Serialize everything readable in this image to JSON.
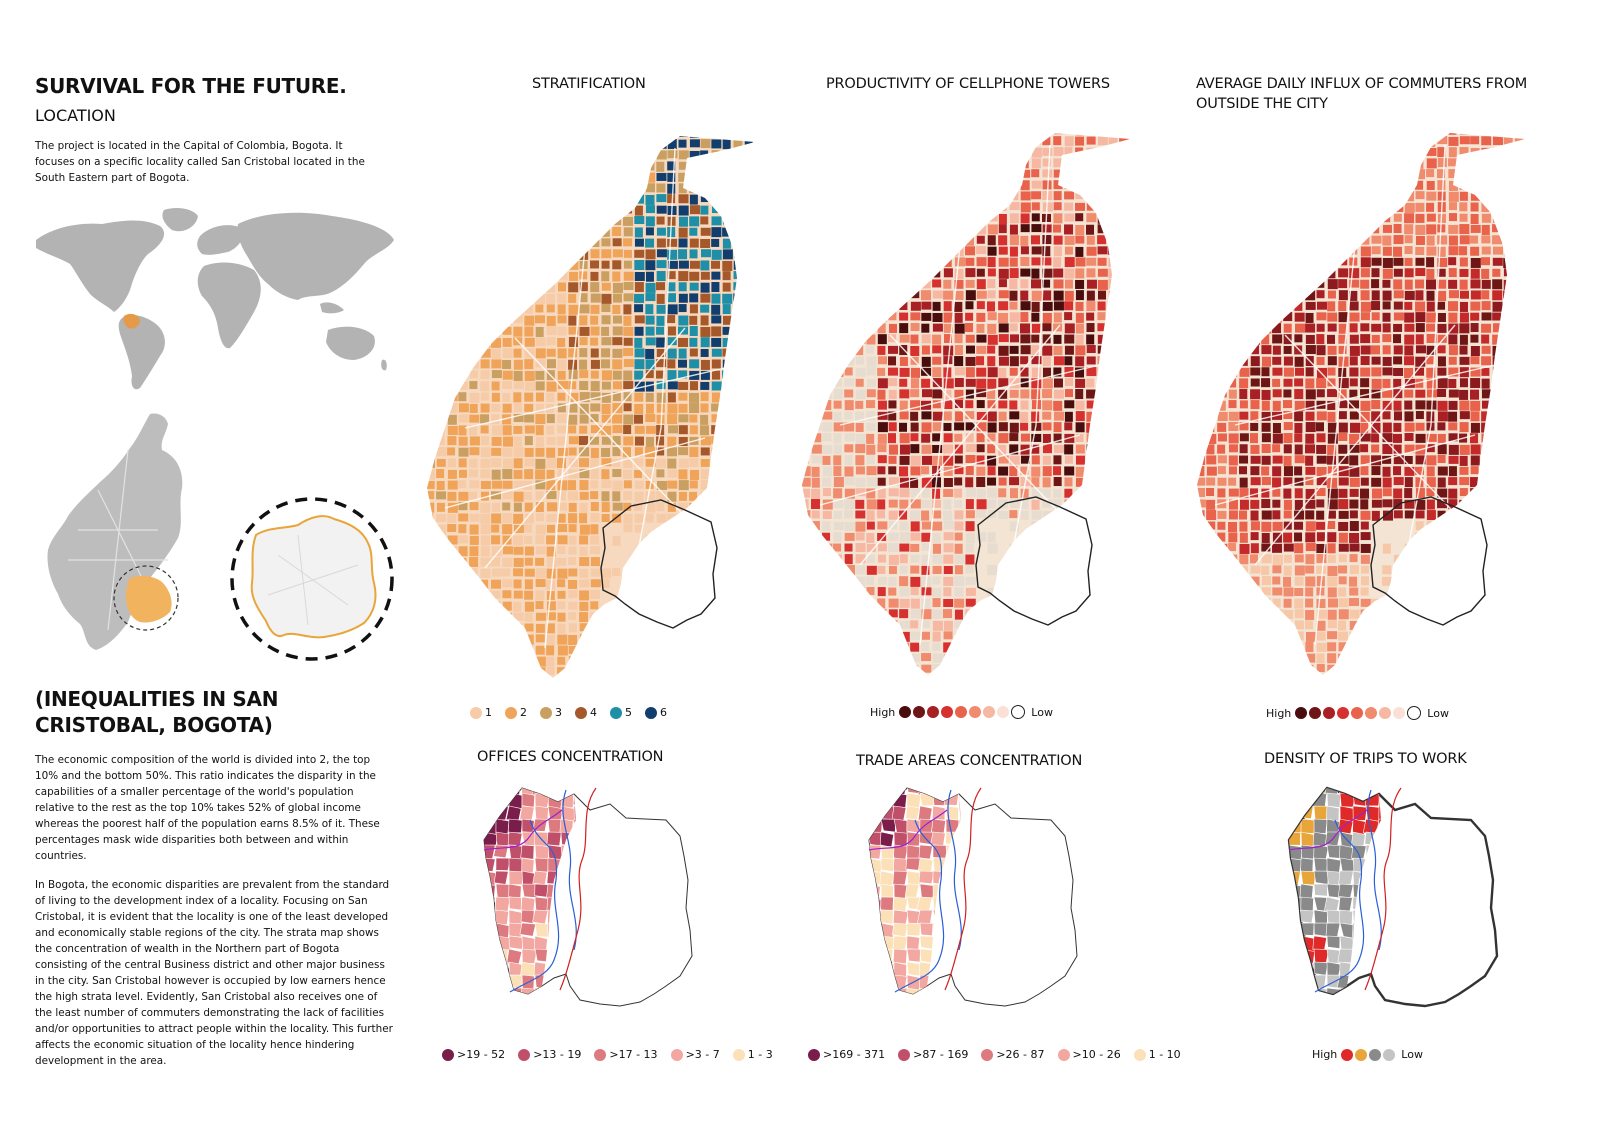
{
  "header": {
    "title": "SURVIVAL FOR THE FUTURE.",
    "location_heading": "LOCATION",
    "location_text": "The project is located in the Capital of Colombia, Bogota. It focuses on a specific locality called San Cristobal located in the South Eastern part of Bogota."
  },
  "inequalities": {
    "title": "(INEQUALITIES IN SAN CRISTOBAL, BOGOTA)",
    "paragraph1": "The economic composition of the world is divided into 2, the top 10% and the bottom 50%. This ratio indicates the disparity in the capabilities of a smaller percentage of the world's population relative to the rest as the top 10% takes 52% of global income whereas the poorest half of the population earns 8.5% of it. These percentages mask wide disparities both between and within countries.",
    "paragraph2": "In Bogota, the economic disparities are prevalent from the standard of living to the development index of a locality. Focusing on San Cristobal, it is evident that the locality is one of the least developed and economically stable regions of the city. The strata map shows the concentration of wealth in the Northern part of Bogota consisting of the central Business district and other major business in the city. San Cristobal however is occupied by low earners hence the high strata level. Evidently, San Cristobal also receives one of the least number of commuters demonstrating the lack of facilities and/or opportunities to attract people within the locality. This further affects the economic situation of the locality hence hindering development in the area."
  },
  "maps": {
    "stratification": {
      "title": "STRATIFICATION",
      "legend": [
        {
          "label": "1",
          "color": "#f6cba8"
        },
        {
          "label": "2",
          "color": "#f0a45a"
        },
        {
          "label": "3",
          "color": "#c9a062"
        },
        {
          "label": "4",
          "color": "#a5582a"
        },
        {
          "label": "5",
          "color": "#1e8fa6"
        },
        {
          "label": "6",
          "color": "#123e6e"
        }
      ]
    },
    "cellphone": {
      "title": "PRODUCTIVITY OF CELLPHONE TOWERS",
      "high_label": "High",
      "low_label": "Low",
      "colors": [
        "#4a0d0d",
        "#6e1515",
        "#a81f24",
        "#d6312f",
        "#e8624c",
        "#f08b6e",
        "#f6b8a3",
        "#fbe0d6",
        "#ffffff"
      ]
    },
    "commuters": {
      "title": "AVERAGE DAILY INFLUX OF COMMUTERS FROM OUTSIDE THE CITY",
      "high_label": "High",
      "low_label": "Low",
      "colors": [
        "#4a0d0d",
        "#6e1515",
        "#a81f24",
        "#d6312f",
        "#e8624c",
        "#f08b6e",
        "#f6b8a3",
        "#fbe0d6",
        "#ffffff"
      ]
    },
    "offices": {
      "title": "OFFICES CONCENTRATION",
      "legend": [
        {
          "label": ">19 - 52",
          "color": "#7a1d4a"
        },
        {
          "label": ">13 - 19",
          "color": "#c0506a"
        },
        {
          "label": ">17 - 13",
          "color": "#dc7a80"
        },
        {
          "label": ">3 - 7",
          "color": "#f2a8a0"
        },
        {
          "label": "1 - 3",
          "color": "#fbe0b8"
        }
      ]
    },
    "trade": {
      "title": "TRADE AREAS CONCENTRATION",
      "legend": [
        {
          "label": ">169 - 371",
          "color": "#7a1d4a"
        },
        {
          "label": ">87 - 169",
          "color": "#c0506a"
        },
        {
          "label": ">26 - 87",
          "color": "#dc7a80"
        },
        {
          "label": ">10 - 26",
          "color": "#f2a8a0"
        },
        {
          "label": "1 - 10",
          "color": "#fbe0b8"
        }
      ]
    },
    "trips": {
      "title": "DENSITY OF TRIPS TO WORK",
      "high_label": "High",
      "low_label": "Low",
      "colors": [
        "#e02a2a",
        "#e8a53a",
        "#8a8a8a",
        "#c4c4c4"
      ]
    }
  }
}
